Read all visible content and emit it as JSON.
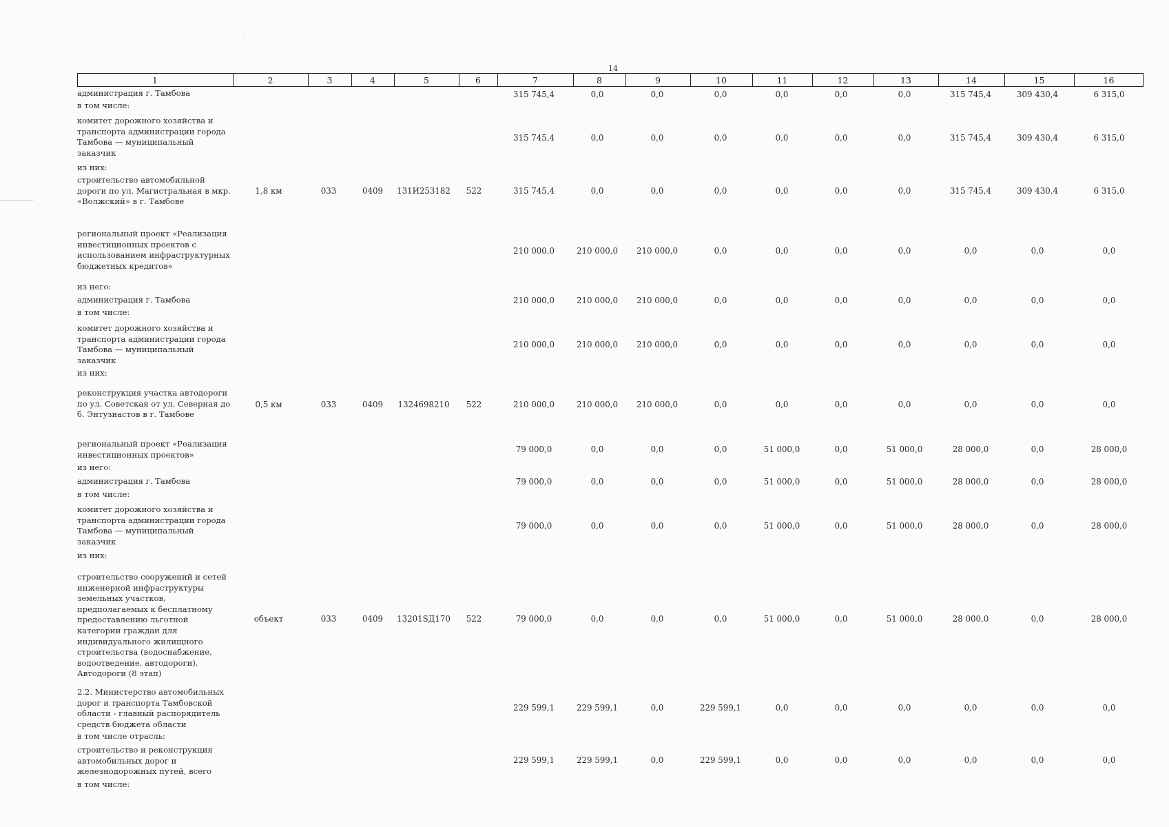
{
  "page_number": "14",
  "header_columns": [
    "1",
    "2",
    "3",
    "4",
    "5",
    "6",
    "7",
    "8",
    "9",
    "10",
    "11",
    "12",
    "13",
    "14",
    "15",
    "16"
  ],
  "rows": [
    {
      "label": "администрация г. Тамбова",
      "values": [
        "315 745,4",
        "0,0",
        "0,0",
        "0,0",
        "0,0",
        "0,0",
        "0,0",
        "315 745,4",
        "309 430,4",
        "6 315,0"
      ]
    },
    {
      "label": "в том числе:"
    },
    {
      "label": "комитет дорожного хозяйства и транспорта администрации города Тамбова — муниципальный заказчик",
      "values": [
        "315 745,4",
        "0,0",
        "0,0",
        "0,0",
        "0,0",
        "0,0",
        "0,0",
        "315 745,4",
        "309 430,4",
        "6 315,0"
      ]
    },
    {
      "label": "из них:"
    },
    {
      "label": "строительство автомобильной дороги по ул. Магистральная в мкр. «Волжский» в г. Тамбове",
      "unit": "1,8 км",
      "c3": "033",
      "c4": "0409",
      "c5": "131И253182",
      "c6": "522",
      "values": [
        "315 745,4",
        "0,0",
        "0,0",
        "0,0",
        "0,0",
        "0,0",
        "0,0",
        "315 745,4",
        "309 430,4",
        "6 315,0"
      ]
    },
    {
      "label": "региональный проект «Реализация инвестиционных проектов с использованием инфраструктурных бюджетных кредитов»",
      "values": [
        "210 000,0",
        "210 000,0",
        "210 000,0",
        "0,0",
        "0,0",
        "0,0",
        "0,0",
        "0,0",
        "0,0",
        "0,0"
      ]
    },
    {
      "label": "из него:"
    },
    {
      "label": "администрация г. Тамбова",
      "values": [
        "210 000,0",
        "210 000,0",
        "210 000,0",
        "0,0",
        "0,0",
        "0,0",
        "0,0",
        "0,0",
        "0,0",
        "0,0"
      ]
    },
    {
      "label": "в том числе:"
    },
    {
      "label": "комитет дорожного хозяйства и транспорта администрации города Тамбова — муниципальный заказчик",
      "values": [
        "210 000,0",
        "210 000,0",
        "210 000,0",
        "0,0",
        "0,0",
        "0,0",
        "0,0",
        "0,0",
        "0,0",
        "0,0"
      ]
    },
    {
      "label": "из них:"
    },
    {
      "label": "реконструкция участка автодороги по ул. Советская от ул. Северная до б. Энтузиастов в г. Тамбове",
      "unit": "0,5 км",
      "c3": "033",
      "c4": "0409",
      "c5": "1324698210",
      "c6": "522",
      "values": [
        "210 000,0",
        "210 000,0",
        "210 000,0",
        "0,0",
        "0,0",
        "0,0",
        "0,0",
        "0,0",
        "0,0",
        "0,0"
      ]
    },
    {
      "label": "региональный проект «Реализация инвестиционных проектов»",
      "values": [
        "79 000,0",
        "0,0",
        "0,0",
        "0,0",
        "51 000,0",
        "0,0",
        "51 000,0",
        "28 000,0",
        "0,0",
        "28 000,0"
      ]
    },
    {
      "label": "из него:"
    },
    {
      "label": "администрация г. Тамбова",
      "values": [
        "79 000,0",
        "0,0",
        "0,0",
        "0,0",
        "51 000,0",
        "0,0",
        "51 000,0",
        "28 000,0",
        "0,0",
        "28 000,0"
      ]
    },
    {
      "label": "в том числе:"
    },
    {
      "label": "комитет дорожного хозяйства и транспорта администрации города Тамбова — муниципальный заказчик",
      "values": [
        "79 000,0",
        "0,0",
        "0,0",
        "0,0",
        "51 000,0",
        "0,0",
        "51 000,0",
        "28 000,0",
        "0,0",
        "28 000,0"
      ]
    },
    {
      "label": "из них:"
    },
    {
      "label": "строительство сооружений и сетей инженерной инфраструктуры земельных участков, предполагаемых к бесплатному предоставлению льготной категории граждан для индивидуального жилищного строительства (водоснабжение, водоотведение, автодороги). Автодороги (8 этап)",
      "unit": "объект",
      "c3": "033",
      "c4": "0409",
      "c5": "13201SД170",
      "c6": "522",
      "values": [
        "79 000,0",
        "0,0",
        "0,0",
        "0,0",
        "51 000,0",
        "0,0",
        "51 000,0",
        "28 000,0",
        "0,0",
        "28 000,0"
      ]
    },
    {
      "label": "2.2. Министерство автомобильных дорог и транспорта Тамбовской области - главный распорядитель средств бюджета области",
      "values": [
        "229 599,1",
        "229 599,1",
        "0,0",
        "229 599,1",
        "0,0",
        "0,0",
        "0,0",
        "0,0",
        "0,0",
        "0,0"
      ]
    },
    {
      "label": "в том числе отрасль:"
    },
    {
      "label": "строительство и реконструкция автомобильных дорог и железнодорожных путей, всего",
      "values": [
        "229 599,1",
        "229 599,1",
        "0,0",
        "229 599,1",
        "0,0",
        "0,0",
        "0,0",
        "0,0",
        "0,0",
        "0,0"
      ]
    },
    {
      "label": "в том числе:"
    }
  ]
}
